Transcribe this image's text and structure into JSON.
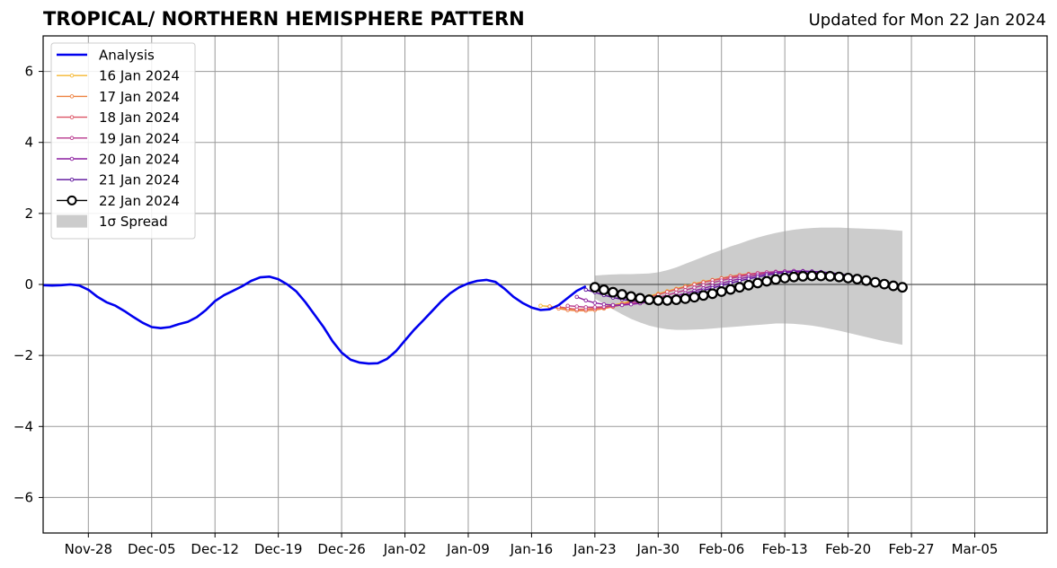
{
  "header": {
    "title": "TROPICAL/ NORTHERN HEMISPHERE PATTERN",
    "updated": "Updated for Mon 22 Jan 2024"
  },
  "chart_data": {
    "type": "line",
    "title": "TROPICAL/ NORTHERN HEMISPHERE PATTERN",
    "subtitle": "Updated for Mon 22 Jan 2024",
    "xlabel": "",
    "ylabel": "",
    "x_axis": {
      "type": "date",
      "range": [
        "2023-11-23",
        "2024-03-13"
      ],
      "ticks": [
        "2023-11-28",
        "2023-12-05",
        "2023-12-12",
        "2023-12-19",
        "2023-12-26",
        "2024-01-02",
        "2024-01-09",
        "2024-01-16",
        "2024-01-23",
        "2024-01-30",
        "2024-02-06",
        "2024-02-13",
        "2024-02-20",
        "2024-02-27",
        "2024-03-05"
      ],
      "tick_labels": [
        "Nov-28",
        "Dec-05",
        "Dec-12",
        "Dec-19",
        "Dec-26",
        "Jan-02",
        "Jan-09",
        "Jan-16",
        "Jan-23",
        "Jan-30",
        "Feb-06",
        "Feb-13",
        "Feb-20",
        "Feb-27",
        "Mar-05"
      ]
    },
    "y_axis": {
      "range": [
        -7,
        7
      ],
      "ticks": [
        6,
        4,
        2,
        0,
        -2,
        -4,
        -6
      ],
      "tick_labels": [
        "6",
        "4",
        "2",
        "0",
        "−2",
        "−4",
        "−6"
      ]
    },
    "grid": true,
    "zero_line": true,
    "legend": {
      "placement": "upper-left",
      "entries": [
        "Analysis",
        "16 Jan 2024",
        "17 Jan 2024",
        "18 Jan 2024",
        "19 Jan 2024",
        "20 Jan 2024",
        "21 Jan 2024",
        "22 Jan 2024",
        "1σ Spread"
      ]
    },
    "analysis": {
      "name": "Analysis",
      "color": "#0000ee",
      "x": [
        "2023-11-23",
        "2023-11-24",
        "2023-11-25",
        "2023-11-26",
        "2023-11-27",
        "2023-11-28",
        "2023-11-29",
        "2023-11-30",
        "2023-12-01",
        "2023-12-02",
        "2023-12-03",
        "2023-12-04",
        "2023-12-05",
        "2023-12-06",
        "2023-12-07",
        "2023-12-08",
        "2023-12-09",
        "2023-12-10",
        "2023-12-11",
        "2023-12-12",
        "2023-12-13",
        "2023-12-14",
        "2023-12-15",
        "2023-12-16",
        "2023-12-17",
        "2023-12-18",
        "2023-12-19",
        "2023-12-20",
        "2023-12-21",
        "2023-12-22",
        "2023-12-23",
        "2023-12-24",
        "2023-12-25",
        "2023-12-26",
        "2023-12-27",
        "2023-12-28",
        "2023-12-29",
        "2023-12-30",
        "2023-12-31",
        "2024-01-01",
        "2024-01-02",
        "2024-01-03",
        "2024-01-04",
        "2024-01-05",
        "2024-01-06",
        "2024-01-07",
        "2024-01-08",
        "2024-01-09",
        "2024-01-10",
        "2024-01-11",
        "2024-01-12",
        "2024-01-13",
        "2024-01-14",
        "2024-01-15",
        "2024-01-16",
        "2024-01-17",
        "2024-01-18",
        "2024-01-19",
        "2024-01-20",
        "2024-01-21",
        "2024-01-22"
      ],
      "y": [
        -0.02,
        -0.03,
        -0.02,
        0.0,
        -0.03,
        -0.15,
        -0.35,
        -0.5,
        -0.6,
        -0.75,
        -0.92,
        -1.08,
        -1.2,
        -1.23,
        -1.2,
        -1.12,
        -1.05,
        -0.92,
        -0.72,
        -0.47,
        -0.3,
        -0.18,
        -0.05,
        0.1,
        0.2,
        0.22,
        0.15,
        0.0,
        -0.2,
        -0.5,
        -0.85,
        -1.2,
        -1.6,
        -1.92,
        -2.12,
        -2.2,
        -2.23,
        -2.22,
        -2.1,
        -1.88,
        -1.58,
        -1.28,
        -1.02,
        -0.75,
        -0.48,
        -0.25,
        -0.08,
        0.03,
        0.1,
        0.13,
        0.07,
        -0.12,
        -0.35,
        -0.52,
        -0.65,
        -0.72,
        -0.7,
        -0.58,
        -0.38,
        -0.18,
        -0.05
      ]
    },
    "forecasts": [
      {
        "name": "16 Jan 2024",
        "color": "#f5b731",
        "start": "2024-01-17",
        "y": [
          -0.6,
          -0.62,
          -0.66,
          -0.69,
          -0.7,
          -0.69,
          -0.67,
          -0.63,
          -0.58,
          -0.53,
          -0.47,
          -0.4,
          -0.33,
          -0.26,
          -0.19,
          -0.12,
          -0.05,
          0.02,
          0.08,
          0.13,
          0.18,
          0.23,
          0.27,
          0.3
        ]
      },
      {
        "name": "17 Jan 2024",
        "color": "#ee8140",
        "start": "2024-01-18",
        "y": [
          -0.62,
          -0.68,
          -0.72,
          -0.74,
          -0.74,
          -0.72,
          -0.68,
          -0.63,
          -0.57,
          -0.5,
          -0.43,
          -0.36,
          -0.28,
          -0.21,
          -0.14,
          -0.07,
          0.0,
          0.06,
          0.11,
          0.16,
          0.2,
          0.24,
          0.27,
          0.29,
          0.31,
          0.32
        ]
      },
      {
        "name": "18 Jan 2024",
        "color": "#dc5364",
        "start": "2024-01-19",
        "y": [
          -0.63,
          -0.67,
          -0.7,
          -0.7,
          -0.68,
          -0.65,
          -0.61,
          -0.56,
          -0.5,
          -0.43,
          -0.36,
          -0.29,
          -0.21,
          -0.14,
          -0.07,
          0.0,
          0.06,
          0.12,
          0.17,
          0.22,
          0.26,
          0.29,
          0.32,
          0.34,
          0.35,
          0.35,
          0.34,
          0.32,
          0.29
        ]
      },
      {
        "name": "19 Jan 2024",
        "color": "#b8398e",
        "start": "2024-01-20",
        "y": [
          -0.6,
          -0.62,
          -0.64,
          -0.64,
          -0.63,
          -0.61,
          -0.58,
          -0.54,
          -0.49,
          -0.43,
          -0.37,
          -0.3,
          -0.23,
          -0.16,
          -0.09,
          -0.02,
          0.05,
          0.11,
          0.17,
          0.22,
          0.27,
          0.31,
          0.34,
          0.36,
          0.37,
          0.38,
          0.37,
          0.35,
          0.32,
          0.28,
          0.23
        ]
      },
      {
        "name": "20 Jan 2024",
        "color": "#8c1fa0",
        "start": "2024-01-21",
        "y": [
          -0.35,
          -0.45,
          -0.52,
          -0.56,
          -0.58,
          -0.58,
          -0.56,
          -0.53,
          -0.49,
          -0.44,
          -0.38,
          -0.32,
          -0.25,
          -0.18,
          -0.11,
          -0.04,
          0.03,
          0.1,
          0.16,
          0.21,
          0.26,
          0.3,
          0.34,
          0.36,
          0.38,
          0.38,
          0.37,
          0.35,
          0.32,
          0.28,
          0.23,
          0.17
        ]
      },
      {
        "name": "21 Jan 2024",
        "color": "#5a0e9a",
        "start": "2024-01-22",
        "y": [
          -0.15,
          -0.22,
          -0.3,
          -0.37,
          -0.42,
          -0.46,
          -0.48,
          -0.48,
          -0.46,
          -0.42,
          -0.37,
          -0.31,
          -0.24,
          -0.17,
          -0.1,
          -0.03,
          0.04,
          0.1,
          0.16,
          0.21,
          0.26,
          0.3,
          0.33,
          0.35,
          0.36,
          0.36,
          0.35,
          0.33,
          0.3,
          0.26,
          0.21,
          0.15
        ]
      }
    ],
    "latest_forecast": {
      "name": "22 Jan 2024",
      "start": "2024-01-23",
      "y": [
        -0.08,
        -0.15,
        -0.22,
        -0.28,
        -0.34,
        -0.39,
        -0.43,
        -0.45,
        -0.45,
        -0.43,
        -0.4,
        -0.36,
        -0.31,
        -0.26,
        -0.2,
        -0.14,
        -0.08,
        -0.02,
        0.04,
        0.09,
        0.14,
        0.18,
        0.21,
        0.23,
        0.24,
        0.24,
        0.23,
        0.21,
        0.18,
        0.15,
        0.11,
        0.06,
        0.01,
        -0.04,
        -0.08
      ]
    },
    "spread": {
      "name": "1σ Spread",
      "color": "#cccccc",
      "start": "2024-01-23",
      "upper": [
        0.25,
        0.27,
        0.28,
        0.29,
        0.29,
        0.3,
        0.31,
        0.34,
        0.4,
        0.48,
        0.58,
        0.68,
        0.78,
        0.88,
        0.97,
        1.07,
        1.15,
        1.24,
        1.32,
        1.39,
        1.45,
        1.5,
        1.54,
        1.57,
        1.59,
        1.6,
        1.6,
        1.6,
        1.59,
        1.58,
        1.57,
        1.56,
        1.55,
        1.53,
        1.51
      ],
      "lower": [
        -0.4,
        -0.55,
        -0.7,
        -0.84,
        -0.97,
        -1.07,
        -1.16,
        -1.22,
        -1.26,
        -1.28,
        -1.28,
        -1.27,
        -1.26,
        -1.24,
        -1.22,
        -1.2,
        -1.18,
        -1.16,
        -1.14,
        -1.12,
        -1.1,
        -1.1,
        -1.11,
        -1.13,
        -1.16,
        -1.2,
        -1.25,
        -1.3,
        -1.36,
        -1.42,
        -1.48,
        -1.54,
        -1.6,
        -1.65,
        -1.7
      ]
    }
  }
}
